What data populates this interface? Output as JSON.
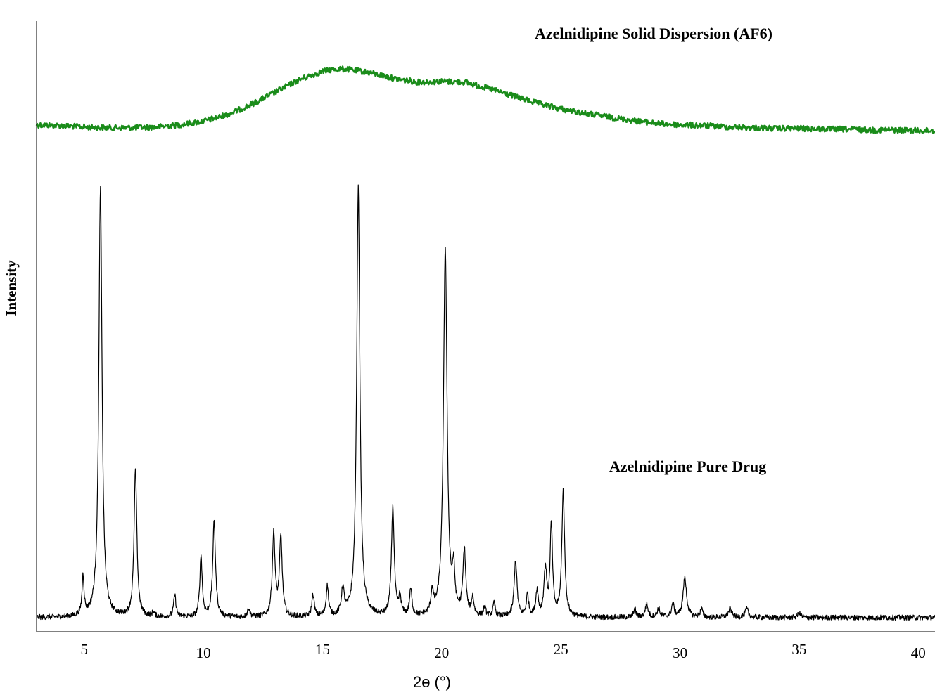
{
  "chart_data": {
    "type": "line",
    "title": "",
    "xlabel": "2ɵ (°)",
    "ylabel": "Intensity",
    "xlim": [
      3,
      40.7
    ],
    "xticks": [
      5,
      10,
      15,
      20,
      25,
      30,
      35,
      40
    ],
    "xtick_labels": [
      "5",
      "10",
      "15",
      "20",
      "25",
      "30",
      "35",
      "40"
    ],
    "yticks": [],
    "grid": false,
    "legend": "none",
    "series": [
      {
        "name": "Azelnidipine Solid Dispersion (AF6)",
        "color": "#1a8c1a",
        "style": "noisy broad amorphous halo",
        "noise": 4,
        "x": [
          3,
          4,
          5,
          6,
          7,
          8,
          9,
          10,
          11,
          12,
          13,
          14,
          15,
          15.5,
          16,
          17,
          18,
          19,
          20,
          21,
          22,
          23,
          24,
          25,
          26,
          27,
          28,
          29,
          30,
          31,
          32,
          33,
          34,
          35,
          36,
          37,
          38,
          39,
          40,
          40.7
        ],
        "y": [
          0.1,
          0.09,
          0.07,
          0.06,
          0.06,
          0.07,
          0.1,
          0.15,
          0.24,
          0.38,
          0.55,
          0.72,
          0.84,
          0.87,
          0.87,
          0.82,
          0.74,
          0.69,
          0.7,
          0.69,
          0.6,
          0.5,
          0.4,
          0.32,
          0.26,
          0.21,
          0.16,
          0.12,
          0.1,
          0.09,
          0.07,
          0.06,
          0.05,
          0.05,
          0.04,
          0.04,
          0.03,
          0.03,
          0.02,
          0.02
        ]
      },
      {
        "name": "Azelnidipine Pure Drug",
        "color": "#000000",
        "style": "sharp crystalline peaks",
        "baseline": 0.01,
        "peaks": [
          {
            "x": 4.95,
            "h": 0.09,
            "w": 0.05
          },
          {
            "x": 5.68,
            "h": 0.99,
            "w": 0.08
          },
          {
            "x": 7.15,
            "h": 0.34,
            "w": 0.07
          },
          {
            "x": 7.9,
            "h": 0.01,
            "w": 0.06
          },
          {
            "x": 8.8,
            "h": 0.05,
            "w": 0.06
          },
          {
            "x": 9.9,
            "h": 0.14,
            "w": 0.06
          },
          {
            "x": 10.45,
            "h": 0.22,
            "w": 0.07
          },
          {
            "x": 11.9,
            "h": 0.02,
            "w": 0.06
          },
          {
            "x": 12.95,
            "h": 0.19,
            "w": 0.07
          },
          {
            "x": 13.25,
            "h": 0.18,
            "w": 0.07
          },
          {
            "x": 14.6,
            "h": 0.05,
            "w": 0.06
          },
          {
            "x": 15.2,
            "h": 0.07,
            "w": 0.06
          },
          {
            "x": 15.85,
            "h": 0.06,
            "w": 0.07
          },
          {
            "x": 16.5,
            "h": 0.99,
            "w": 0.08
          },
          {
            "x": 17.95,
            "h": 0.25,
            "w": 0.07
          },
          {
            "x": 18.25,
            "h": 0.04,
            "w": 0.06
          },
          {
            "x": 18.7,
            "h": 0.06,
            "w": 0.06
          },
          {
            "x": 19.6,
            "h": 0.05,
            "w": 0.06
          },
          {
            "x": 20.15,
            "h": 0.85,
            "w": 0.09
          },
          {
            "x": 20.5,
            "h": 0.09,
            "w": 0.06
          },
          {
            "x": 20.95,
            "h": 0.15,
            "w": 0.07
          },
          {
            "x": 21.3,
            "h": 0.04,
            "w": 0.06
          },
          {
            "x": 21.8,
            "h": 0.02,
            "w": 0.06
          },
          {
            "x": 22.2,
            "h": 0.03,
            "w": 0.06
          },
          {
            "x": 23.1,
            "h": 0.13,
            "w": 0.07
          },
          {
            "x": 23.6,
            "h": 0.05,
            "w": 0.06
          },
          {
            "x": 24.0,
            "h": 0.06,
            "w": 0.06
          },
          {
            "x": 24.35,
            "h": 0.11,
            "w": 0.07
          },
          {
            "x": 24.6,
            "h": 0.21,
            "w": 0.06
          },
          {
            "x": 25.1,
            "h": 0.29,
            "w": 0.07
          },
          {
            "x": 28.1,
            "h": 0.02,
            "w": 0.06
          },
          {
            "x": 28.6,
            "h": 0.03,
            "w": 0.07
          },
          {
            "x": 29.1,
            "h": 0.02,
            "w": 0.07
          },
          {
            "x": 29.7,
            "h": 0.03,
            "w": 0.07
          },
          {
            "x": 30.2,
            "h": 0.09,
            "w": 0.09
          },
          {
            "x": 30.9,
            "h": 0.02,
            "w": 0.06
          },
          {
            "x": 32.1,
            "h": 0.02,
            "w": 0.08
          },
          {
            "x": 32.8,
            "h": 0.02,
            "w": 0.08
          },
          {
            "x": 35.0,
            "h": 0.01,
            "w": 0.08
          }
        ]
      }
    ],
    "annotations": [
      {
        "text": "Azelnidipine Solid Dispersion (AF6)",
        "target": "Azelnidipine Solid Dispersion (AF6)"
      },
      {
        "text": "Azelnidipine Pure Drug",
        "target": "Azelnidipine Pure Drug"
      }
    ]
  }
}
